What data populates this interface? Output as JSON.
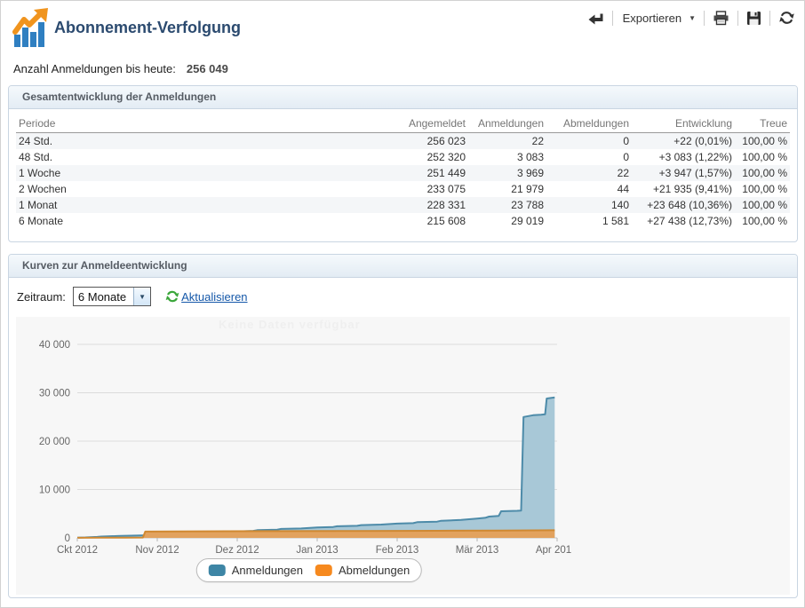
{
  "header": {
    "title": "Abonnement-Verfolgung",
    "toolbar": {
      "export_label": "Exportieren"
    },
    "count_label": "Anzahl Anmeldungen bis heute:",
    "count_value": "256 049"
  },
  "overview_panel": {
    "title": "Gesamtentwicklung der Anmeldungen",
    "columns": [
      "Periode",
      "Angemeldet",
      "Anmeldungen",
      "Abmeldungen",
      "Entwicklung",
      "Treue"
    ],
    "rows": [
      [
        "24 Std.",
        "256 023",
        "22",
        "0",
        "+22 (0,01%)",
        "100,00 %"
      ],
      [
        "48 Std.",
        "252 320",
        "3 083",
        "0",
        "+3 083 (1,22%)",
        "100,00 %"
      ],
      [
        "1 Woche",
        "251 449",
        "3 969",
        "22",
        "+3 947 (1,57%)",
        "100,00 %"
      ],
      [
        "2 Wochen",
        "233 075",
        "21 979",
        "44",
        "+21 935 (9,41%)",
        "100,00 %"
      ],
      [
        "1 Monat",
        "228 331",
        "23 788",
        "140",
        "+23 648 (10,36%)",
        "100,00 %"
      ],
      [
        "6 Monate",
        "215 608",
        "29 019",
        "1 581",
        "+27 438 (12,73%)",
        "100,00 %"
      ]
    ]
  },
  "curves_panel": {
    "title": "Kurven zur Anmeldeentwicklung",
    "period_label": "Zeitraum:",
    "period_value": "6 Monate",
    "refresh_label": "Aktualisieren",
    "watermark": "Keine Daten verfügbar"
  },
  "chart_data": {
    "type": "area",
    "x_tick_labels": [
      "Ckt 2012",
      "Nov 2012",
      "Dez 2012",
      "Jan 2013",
      "Feb 2013",
      "Mär 2013",
      "Apr 201"
    ],
    "y_ticks": [
      0,
      10000,
      20000,
      30000,
      40000
    ],
    "y_tick_labels": [
      "0",
      "10 000",
      "20 000",
      "30 000",
      "40 000"
    ],
    "ylim": [
      0,
      44000
    ],
    "x_range_months": [
      0,
      6
    ],
    "grid": true,
    "legend_position": "bottom",
    "series": [
      {
        "name": "Anmeldungen",
        "fill": "#a8c8d7",
        "stroke": "#4d8ba9",
        "legend_color": "#3d85a5",
        "points": [
          [
            0,
            50
          ],
          [
            0.1,
            100
          ],
          [
            0.25,
            200
          ],
          [
            0.3,
            280
          ],
          [
            0.5,
            380
          ],
          [
            0.55,
            430
          ],
          [
            0.8,
            520
          ],
          [
            1.0,
            620
          ],
          [
            1.2,
            720
          ],
          [
            1.25,
            800
          ],
          [
            1.5,
            900
          ],
          [
            1.55,
            1000
          ],
          [
            1.8,
            1100
          ],
          [
            1.85,
            1250
          ],
          [
            2.0,
            1320
          ],
          [
            2.2,
            1450
          ],
          [
            2.25,
            1600
          ],
          [
            2.5,
            1700
          ],
          [
            2.55,
            1850
          ],
          [
            2.8,
            1950
          ],
          [
            3.0,
            2150
          ],
          [
            3.2,
            2250
          ],
          [
            3.25,
            2400
          ],
          [
            3.5,
            2500
          ],
          [
            3.55,
            2650
          ],
          [
            3.8,
            2750
          ],
          [
            4.0,
            2950
          ],
          [
            4.2,
            3050
          ],
          [
            4.25,
            3250
          ],
          [
            4.5,
            3350
          ],
          [
            4.55,
            3550
          ],
          [
            4.8,
            3700
          ],
          [
            5.0,
            4000
          ],
          [
            5.1,
            4150
          ],
          [
            5.15,
            4400
          ],
          [
            5.27,
            4550
          ],
          [
            5.3,
            5500
          ],
          [
            5.5,
            5600
          ],
          [
            5.55,
            5650
          ],
          [
            5.58,
            25000
          ],
          [
            5.7,
            25350
          ],
          [
            5.8,
            25450
          ],
          [
            5.85,
            25550
          ],
          [
            5.87,
            28800
          ],
          [
            5.93,
            28950
          ],
          [
            5.97,
            29019
          ]
        ]
      },
      {
        "name": "Abmeldungen",
        "fill": "#e2a25e",
        "stroke": "#d08932",
        "legend_color": "#f6891e",
        "points": [
          [
            0,
            20
          ],
          [
            0.3,
            40
          ],
          [
            0.6,
            60
          ],
          [
            0.82,
            80
          ],
          [
            0.85,
            1300
          ],
          [
            1.5,
            1350
          ],
          [
            2.5,
            1400
          ],
          [
            3.5,
            1430
          ],
          [
            4.5,
            1470
          ],
          [
            5.3,
            1520
          ],
          [
            5.97,
            1581
          ]
        ]
      }
    ]
  },
  "colors": {
    "title": "#2b4a6f",
    "logo_blue": "#2f7fc1",
    "logo_orange": "#f0941e",
    "panel_border": "#c9d5e2",
    "link": "#1558a9",
    "refresh_green": "#3aa63a"
  }
}
